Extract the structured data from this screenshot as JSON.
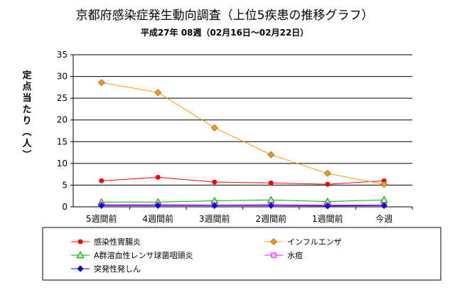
{
  "chart_data": {
    "type": "line",
    "title": "京都府感染症発生動向調査（上位5疾患の推移グラフ）",
    "subtitle": "平成27年 08週（02月16日～02月22日）",
    "ylabel": "定点当たり（人）",
    "xlabel": "",
    "categories": [
      "5週間前",
      "4週間前",
      "3週間前",
      "2週間前",
      "1週間前",
      "今週"
    ],
    "ylim": [
      0,
      35
    ],
    "yticks": [
      0,
      5,
      10,
      15,
      20,
      25,
      30,
      35
    ],
    "grid": "horizontal",
    "legend_position": "bottom",
    "series": [
      {
        "name": "感染性胃腸炎",
        "color": "#ff0000",
        "marker": "circle",
        "values": [
          6.0,
          6.8,
          5.7,
          5.5,
          5.2,
          6.0
        ]
      },
      {
        "name": "インフルエンザ",
        "color": "#ff9900",
        "marker": "diamond",
        "values": [
          28.6,
          26.3,
          18.2,
          12.0,
          7.7,
          5.2
        ]
      },
      {
        "name": "A群溶血性レンサ球菌咽頭炎",
        "color": "#00aa00",
        "marker": "triangle",
        "values": [
          1.1,
          1.1,
          1.4,
          1.6,
          1.2,
          1.6
        ]
      },
      {
        "name": "水痘",
        "color": "#ff00ff",
        "marker": "square",
        "values": [
          0.5,
          0.5,
          0.4,
          0.5,
          0.4,
          0.4
        ]
      },
      {
        "name": "突発性発しん",
        "color": "#0000ff",
        "marker": "diamond",
        "values": [
          0.3,
          0.3,
          0.3,
          0.3,
          0.2,
          0.3
        ]
      }
    ]
  }
}
